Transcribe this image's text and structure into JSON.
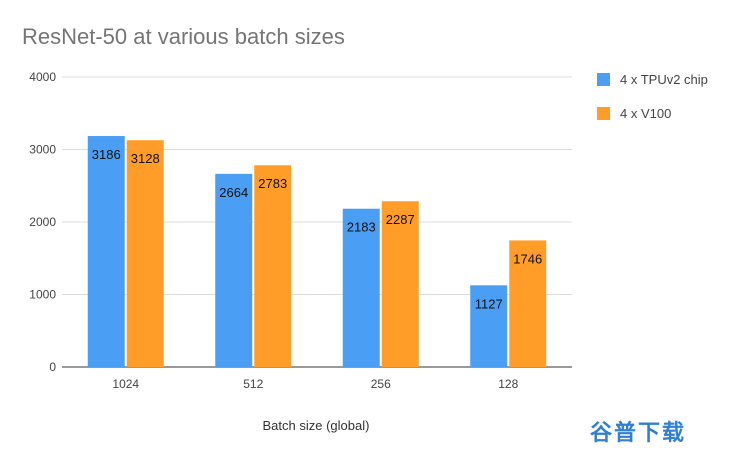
{
  "chart_data": {
    "type": "bar",
    "title": "ResNet-50 at various batch sizes",
    "xlabel": "Batch size (global)",
    "ylabel": "",
    "ylim": [
      0,
      4000
    ],
    "yticks": [
      0,
      1000,
      2000,
      3000,
      4000
    ],
    "grid": true,
    "legend_position": "right",
    "categories": [
      "1024",
      "512",
      "256",
      "128"
    ],
    "series": [
      {
        "name": "4 x TPUv2 chip",
        "color": "#4a9ff5",
        "values": [
          3186,
          2664,
          2183,
          1127
        ]
      },
      {
        "name": "4 x V100",
        "color": "#ff9d28",
        "values": [
          3128,
          2783,
          2287,
          1746
        ]
      }
    ]
  },
  "watermark": "谷普下载"
}
